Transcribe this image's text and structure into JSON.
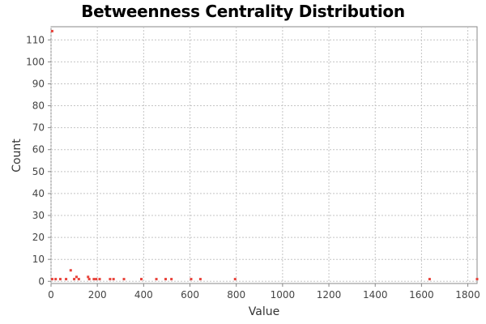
{
  "chart_data": {
    "type": "scatter",
    "title": "Betweenness Centrality Distribution",
    "xlabel": "Value",
    "ylabel": "Count",
    "xlim": [
      0,
      1840
    ],
    "ylim": [
      -1,
      116
    ],
    "x_ticks": [
      0,
      200,
      400,
      600,
      800,
      1000,
      1200,
      1400,
      1600,
      1800
    ],
    "y_ticks": [
      0,
      10,
      20,
      30,
      40,
      50,
      60,
      70,
      80,
      90,
      100,
      110
    ],
    "grid": true,
    "marker_color": "#e8423a",
    "series": [
      {
        "points": [
          [
            5,
            114
          ],
          [
            5,
            1
          ],
          [
            20,
            1
          ],
          [
            40,
            1
          ],
          [
            65,
            1
          ],
          [
            85,
            5
          ],
          [
            100,
            1
          ],
          [
            110,
            2
          ],
          [
            120,
            1
          ],
          [
            160,
            2
          ],
          [
            165,
            1
          ],
          [
            185,
            1
          ],
          [
            195,
            1
          ],
          [
            210,
            1
          ],
          [
            255,
            1
          ],
          [
            270,
            1
          ],
          [
            315,
            1
          ],
          [
            390,
            1
          ],
          [
            455,
            1
          ],
          [
            495,
            1
          ],
          [
            520,
            1
          ],
          [
            605,
            1
          ],
          [
            645,
            1
          ],
          [
            795,
            1
          ],
          [
            1635,
            1
          ],
          [
            1840,
            1
          ]
        ]
      }
    ]
  }
}
